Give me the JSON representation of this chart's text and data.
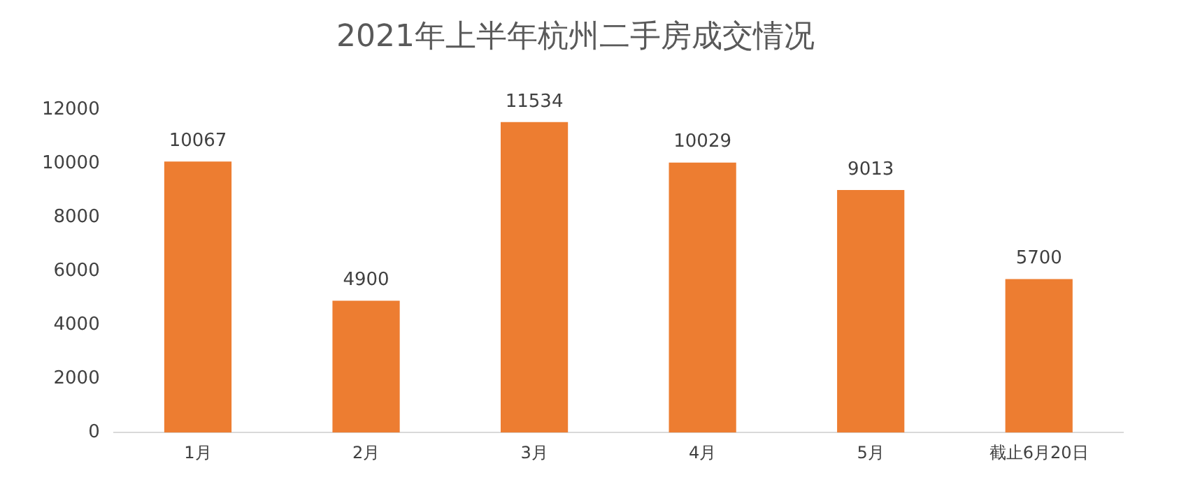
{
  "chart_data": {
    "type": "bar",
    "title": "2021年上半年杭州二手房成交情况",
    "categories": [
      "1月",
      "2月",
      "3月",
      "4月",
      "5月",
      "截止6月20日"
    ],
    "values": [
      10067,
      4900,
      11534,
      10029,
      9013,
      5700
    ],
    "color": "#ed7d31",
    "ylim": [
      0,
      12000
    ],
    "yticks": [
      0,
      2000,
      4000,
      6000,
      8000,
      10000,
      12000
    ],
    "grid": false,
    "legend": false,
    "data_labels": true
  }
}
